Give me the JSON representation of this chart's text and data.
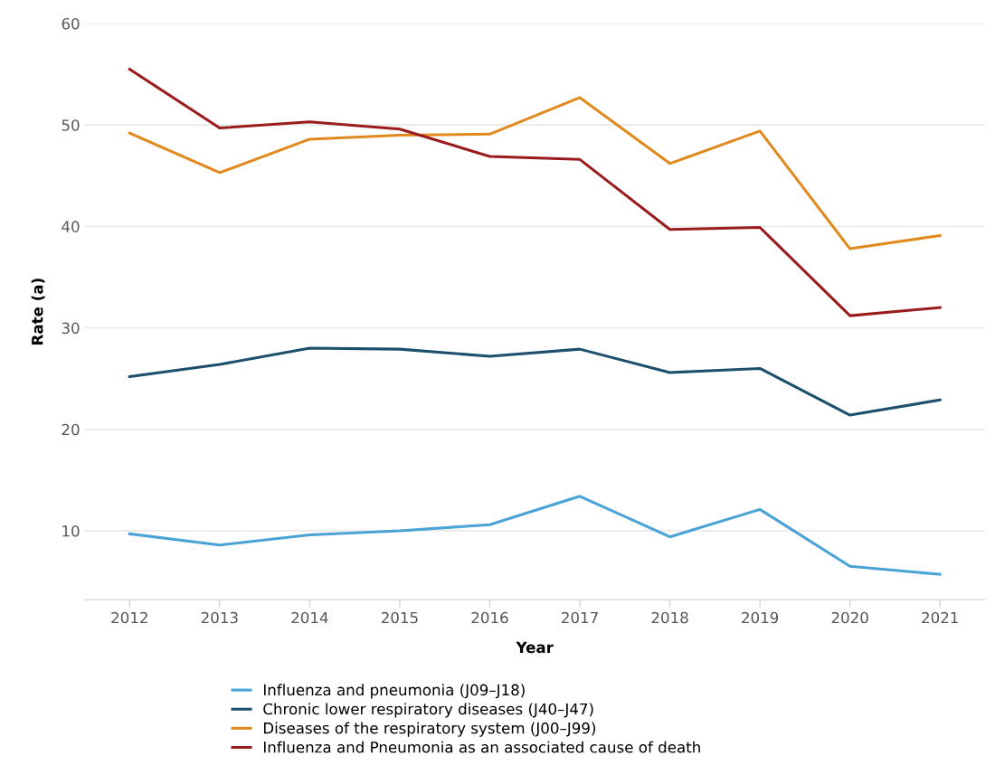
{
  "chart_data": {
    "type": "line",
    "xlabel": "Year",
    "ylabel": "Rate (a)",
    "categories": [
      "2012",
      "2013",
      "2014",
      "2015",
      "2016",
      "2017",
      "2018",
      "2019",
      "2020",
      "2021"
    ],
    "series": [
      {
        "name": "Influenza and pneumonia (J09–J18)",
        "color": "#4aa3d6",
        "values": [
          9.7,
          8.6,
          9.6,
          10.0,
          10.6,
          13.4,
          9.4,
          12.1,
          6.5,
          5.7
        ]
      },
      {
        "name": "Chronic lower respiratory diseases (J40–J47)",
        "color": "#1c4e6e",
        "values": [
          25.2,
          26.4,
          28.0,
          27.9,
          27.2,
          27.9,
          25.6,
          26.0,
          21.4,
          22.9
        ]
      },
      {
        "name": "Diseases of the respiratory system (J00–J99)",
        "color": "#e08a1e",
        "values": [
          49.2,
          45.3,
          48.6,
          49.0,
          49.1,
          52.7,
          46.2,
          49.4,
          37.8,
          39.1
        ]
      },
      {
        "name": "Influenza and Pneumonia as an associated cause of death",
        "color": "#9b1c1f",
        "values": [
          55.5,
          49.7,
          50.3,
          49.6,
          46.9,
          46.6,
          39.7,
          39.9,
          31.2,
          32.0
        ]
      }
    ],
    "ylim": [
      3.2,
      60
    ],
    "yticks": [
      10,
      20,
      30,
      40,
      50,
      60
    ],
    "grid": "y",
    "legend": "bottom",
    "marker": "none",
    "line_style": "solid"
  }
}
